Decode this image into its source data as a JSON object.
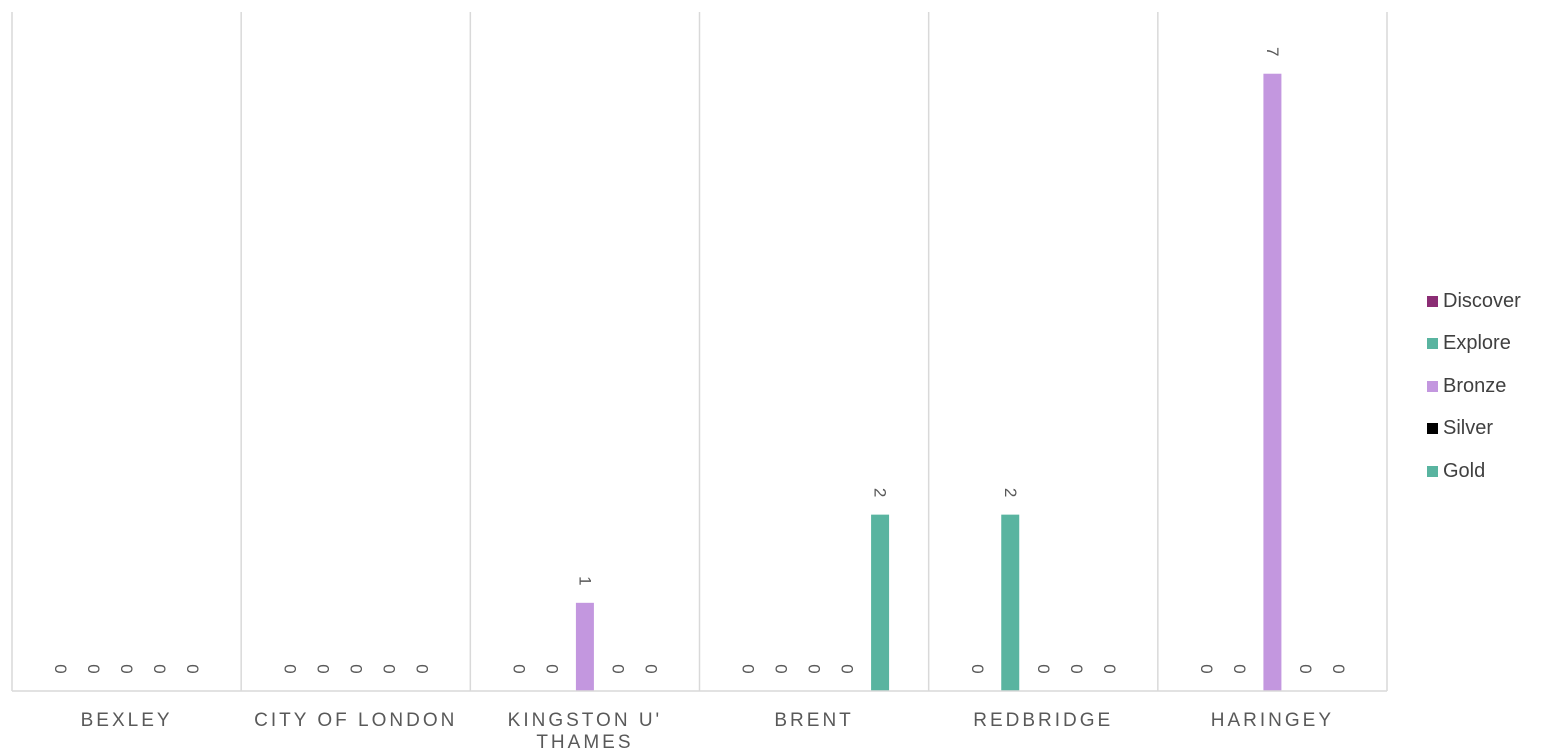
{
  "chart_data": {
    "type": "bar",
    "categories": [
      "BEXLEY",
      "CITY OF LONDON",
      "KINGSTON U' THAMES",
      "BRENT",
      "REDBRIDGE",
      "HARINGEY"
    ],
    "category_lines": [
      [
        "BEXLEY"
      ],
      [
        "CITY OF LONDON"
      ],
      [
        "KINGSTON U'",
        "THAMES"
      ],
      [
        "BRENT"
      ],
      [
        "REDBRIDGE"
      ],
      [
        "HARINGEY"
      ]
    ],
    "series": [
      {
        "name": "Discover",
        "color": "#8B2D74",
        "values": [
          0,
          0,
          0,
          0,
          0,
          0
        ]
      },
      {
        "name": "Explore",
        "color": "#59B4A0",
        "values": [
          0,
          0,
          0,
          0,
          2,
          0
        ]
      },
      {
        "name": "Bronze",
        "color": "#C397DF",
        "values": [
          0,
          0,
          1,
          0,
          0,
          7
        ]
      },
      {
        "name": "Silver",
        "color": "#000000",
        "values": [
          0,
          0,
          0,
          0,
          0,
          0
        ]
      },
      {
        "name": "Gold",
        "color": "#59B4A0",
        "values": [
          0,
          0,
          0,
          2,
          0,
          0
        ]
      }
    ],
    "ylim": [
      0,
      7.7
    ],
    "grid": "vertical category separators",
    "legend_position": "right",
    "data_labels": true,
    "data_label_rotation": "vertical"
  }
}
